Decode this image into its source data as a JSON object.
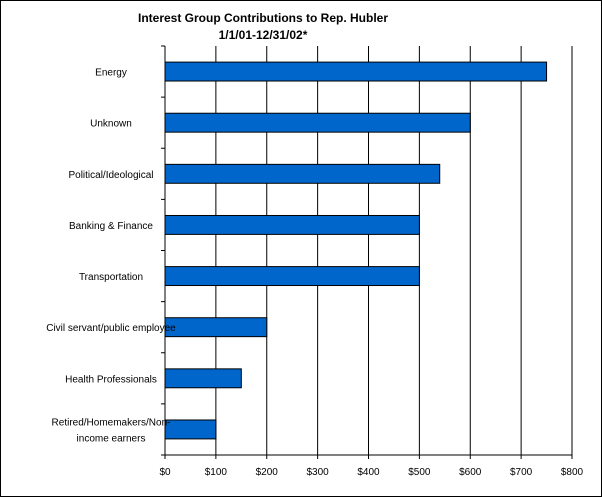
{
  "chart_data": {
    "type": "bar",
    "orientation": "horizontal",
    "title": "Interest Group Contributions to Rep. Hubler",
    "subtitle": "1/1/01-12/31/02*",
    "categories": [
      "Energy",
      "Unknown",
      "Political/Ideological",
      "Banking & Finance",
      "Transportation",
      "Civil servant/public employee",
      "Health Professionals",
      "Retired/Homemakers/Non-income earners"
    ],
    "category_lines": [
      [
        "Energy"
      ],
      [
        "Unknown"
      ],
      [
        "Political/Ideological"
      ],
      [
        "Banking & Finance"
      ],
      [
        "Transportation"
      ],
      [
        "Civil servant/public employee"
      ],
      [
        "Health Professionals"
      ],
      [
        "Retired/Homemakers/Non-",
        "income earners"
      ]
    ],
    "values": [
      750,
      600,
      540,
      500,
      500,
      200,
      150,
      100
    ],
    "xlim": [
      0,
      800
    ],
    "xticks": [
      0,
      100,
      200,
      300,
      400,
      500,
      600,
      700,
      800
    ],
    "xtick_labels": [
      "$0",
      "$100",
      "$200",
      "$300",
      "$400",
      "$500",
      "$600",
      "$700",
      "$800"
    ],
    "xlabel": "",
    "ylabel": "",
    "grid": "vertical",
    "legend": "none",
    "bar_color": "#0066cc"
  }
}
